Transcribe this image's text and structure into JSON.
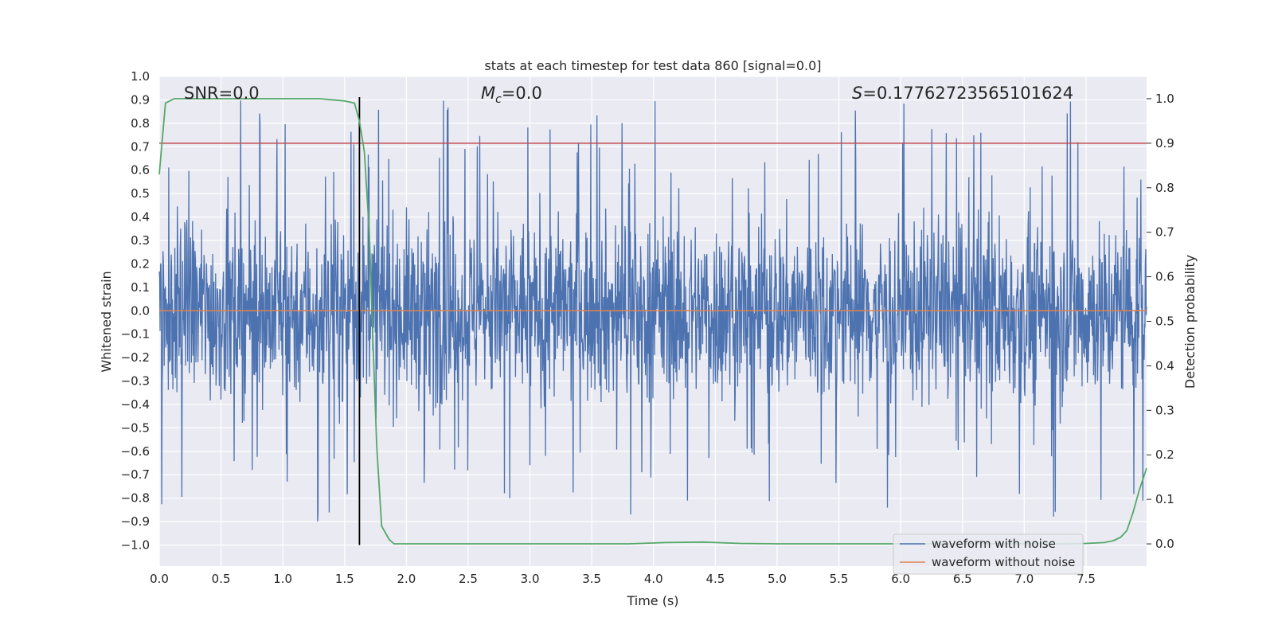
{
  "chart_data": {
    "type": "line",
    "title": "stats at each timestep for test data 860 [signal=0.0]",
    "xlabel": "Time (s)",
    "ylabel": "Whitened strain",
    "y2label": "Detection probability",
    "xlim": [
      0.0,
      7.99
    ],
    "ylim": [
      -1.09,
      1.0
    ],
    "y2lim": [
      -0.05,
      1.05
    ],
    "x_ticks": [
      "0.0",
      "0.5",
      "1.0",
      "1.5",
      "2.0",
      "2.5",
      "3.0",
      "3.5",
      "4.0",
      "4.5",
      "5.0",
      "5.5",
      "6.0",
      "6.5",
      "7.0",
      "7.5"
    ],
    "y_ticks": [
      "1.0",
      "0.9",
      "0.8",
      "0.7",
      "0.6",
      "0.5",
      "0.4",
      "0.3",
      "0.2",
      "0.1",
      "0.0",
      "−0.1",
      "−0.2",
      "−0.3",
      "−0.4",
      "−0.5",
      "−0.6",
      "−0.7",
      "−0.8",
      "−0.9",
      "−1.0"
    ],
    "y2_ticks": [
      "1.0",
      "0.9",
      "0.8",
      "0.7",
      "0.6",
      "0.5",
      "0.4",
      "0.3",
      "0.2",
      "0.1",
      "0.0"
    ],
    "annotations": {
      "snr": "SNR=0.0",
      "mc_symbol": "M",
      "mc_subscript": "c",
      "mc_value": "=0.0",
      "s_symbol": "S",
      "s_value": "=0.17762723565101624"
    },
    "threshold_y2": 0.9,
    "marker_time": 1.62,
    "series": [
      {
        "name": "waveform with noise",
        "color": "#4c72b0",
        "style": "dense noise band",
        "envelope_peak": 0.92,
        "envelope_trough": -1.0
      },
      {
        "name": "waveform without noise",
        "color": "#dd8452",
        "values_constant": 0.0
      },
      {
        "name": "detection probability",
        "axis": "right",
        "color": "#55a868",
        "x": [
          0.0,
          0.05,
          0.12,
          0.3,
          0.6,
          1.0,
          1.3,
          1.5,
          1.58,
          1.62,
          1.66,
          1.7,
          1.73,
          1.76,
          1.8,
          1.86,
          1.9,
          2.0,
          2.5,
          3.0,
          3.5,
          3.8,
          4.1,
          4.4,
          4.7,
          5.0,
          5.5,
          6.0,
          6.5,
          7.0,
          7.3,
          7.5,
          7.65,
          7.72,
          7.78,
          7.83,
          7.88,
          7.93,
          7.99
        ],
        "y": [
          0.83,
          0.99,
          1.0,
          1.0,
          1.0,
          1.0,
          1.0,
          0.995,
          0.99,
          0.95,
          0.88,
          0.7,
          0.45,
          0.22,
          0.04,
          0.01,
          0.0,
          0.0,
          0.0,
          0.0,
          0.0,
          0.0,
          0.003,
          0.004,
          0.001,
          0.0,
          0.0,
          0.0,
          0.0,
          0.0,
          0.0,
          0.001,
          0.003,
          0.007,
          0.015,
          0.03,
          0.07,
          0.12,
          0.17
        ]
      }
    ],
    "red_line_color": "#c44e52",
    "marker_color": "#000000",
    "legend_location": "lower-right"
  }
}
